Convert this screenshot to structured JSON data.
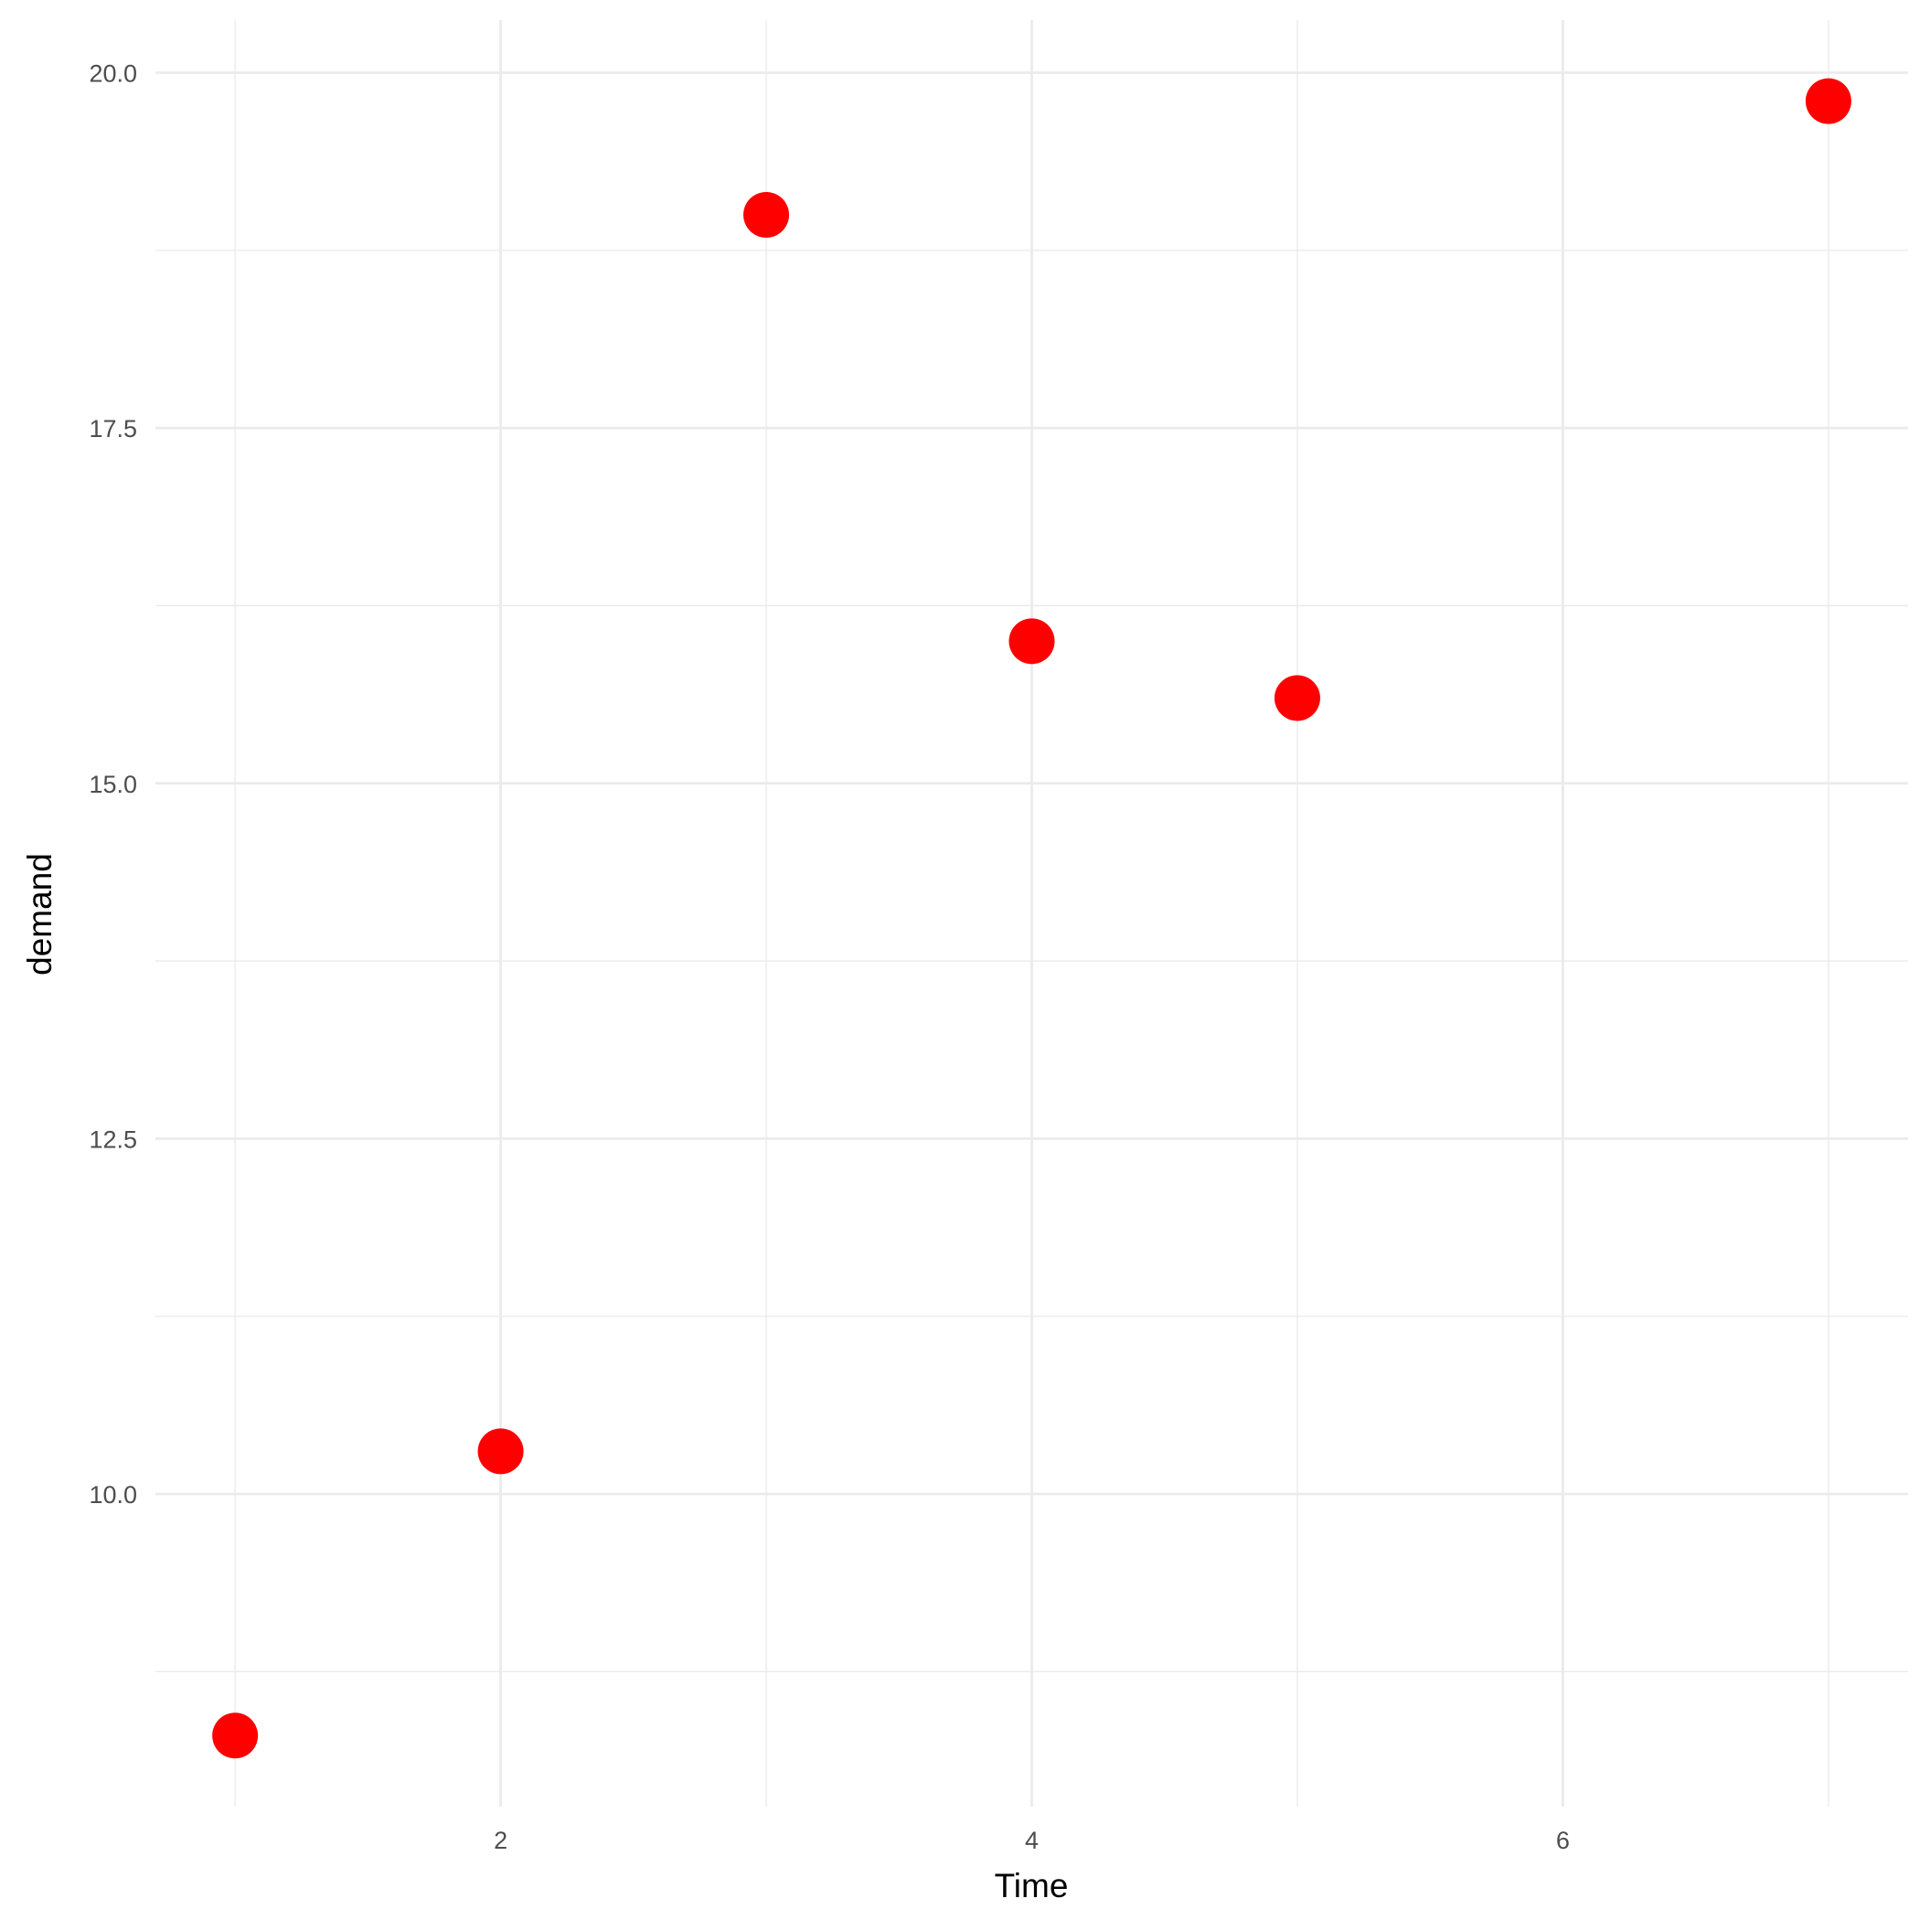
{
  "chart_data": {
    "type": "scatter",
    "title": "",
    "xlabel": "Time",
    "ylabel": "demand",
    "x": [
      1,
      2,
      3,
      4,
      5,
      7
    ],
    "y": [
      8.3,
      10.3,
      19.0,
      16.0,
      15.6,
      19.8
    ],
    "xlim": [
      0.7,
      7.3
    ],
    "ylim": [
      7.8,
      20.37
    ],
    "x_ticks": [
      2,
      4,
      6
    ],
    "x_tick_labels": [
      "2",
      "4",
      "6"
    ],
    "y_ticks": [
      10,
      12.5,
      15,
      17.5,
      20
    ],
    "y_tick_labels": [
      "10.0",
      "12.5",
      "15.0",
      "17.5",
      "20.0"
    ],
    "grid": true,
    "point_color": "#ff0000",
    "grid_color": "#ebebeb",
    "theme": "minimal"
  }
}
